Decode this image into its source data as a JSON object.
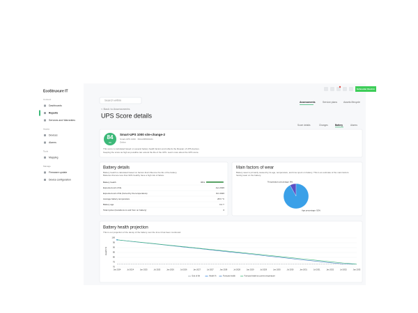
{
  "header": {
    "logo": "EcoStruxure IT",
    "search": "Search within",
    "brand": "Schneider Electric",
    "tabs": [
      "Assessments",
      "Service plans",
      "Assets lifecycle"
    ]
  },
  "sidebar": {
    "sections": [
      {
        "title": "Connect",
        "items": [
          "Dashboards",
          "Reports",
          "Services and Warranties"
        ]
      },
      {
        "title": "Assets",
        "items": [
          "Devices",
          "Alarms"
        ]
      },
      {
        "title": "Tools",
        "items": [
          "Mapping"
        ]
      },
      {
        "title": "Manage",
        "items": [
          "Firmware update",
          "Device configuration"
        ]
      }
    ]
  },
  "page": {
    "breadcrumb": "< Back to Assessments",
    "title": "UPS Score details",
    "tabs": [
      "Score details",
      "Changes",
      "Battery",
      "Alarms"
    ]
  },
  "score": {
    "value": "84",
    "status": "OK",
    "device": "Smart-UPS 1000 site-change-2",
    "meta": [
      "Smart-UPS 1000 · 3S1123BX00241",
      "Online"
    ],
    "description": [
      "This score is calculated based on several battery health factors and reflects the lifespan of UPS devices.",
      "Keeping the score as high as possible can extend the life of the UPS.  Learn more about the UPS score."
    ]
  },
  "battery": {
    "title": "Battery details",
    "description": [
      "Battery health is calculated based on factors that influence the life of the battery.",
      "Batteries that are less than 90% healthy have a high risk of failure."
    ],
    "health": {
      "label": "Battery health",
      "value": 95,
      "value_label": "95%"
    },
    "rows": [
      [
        "Expected end of life",
        "Jan 2026"
      ],
      [
        "Expected end of life (forced by the temperature)",
        "Oct 2026"
      ],
      [
        "Average battery temperature",
        "28.6 °C"
      ],
      [
        "Battery age",
        "0.2 Y"
      ],
      [
        "Total cycles (transitions to and from on battery)",
        "0"
      ]
    ]
  },
  "wear": {
    "title": "Main factors of wear",
    "description": [
      "Battery wear is primarily caused by its age, temperature, and time spent on battery. This is an estimate of the main factors",
      "having wear on the battery."
    ],
    "chart": {
      "type": "pie",
      "values": [
        8,
        92
      ],
      "value_labels": [
        "Temperature percentage: 8%",
        "Age percentage: 92%"
      ],
      "colors": [
        "#5b4fc4",
        "#3aa0e8"
      ]
    }
  },
  "projection": {
    "title": "Battery health projection",
    "description": "This is our projection of the decay of the battery over the time it has been monitored.",
    "chart": {
      "type": "line",
      "y_label": "Health %",
      "categories": [
        "Jan 2024",
        "Jul 2024",
        "Jan 2025",
        "Jul 2025",
        "Jan 2026",
        "Jul 2026",
        "Jan 2027",
        "Jul 2027",
        "Jan 2028",
        "Jul 2028",
        "Jan 2029",
        "Jul 2029",
        "Jan 2030",
        "Jul 2030",
        "Jan 2031",
        "Jul 2031",
        "Jan 2032",
        "Jul 2032",
        "Jan 2033"
      ],
      "ylim": [
        70,
        100
      ],
      "yticks": [
        70,
        75,
        80,
        85,
        90,
        95,
        100
      ],
      "series": [
        {
          "name": "End of life",
          "color": "#9aa0a6",
          "dash": true,
          "values": [
            73,
            73,
            73,
            73,
            73,
            73,
            73,
            73,
            73,
            73,
            73,
            73,
            73,
            73,
            73,
            73,
            73,
            73,
            73
          ]
        },
        {
          "name": "Health %",
          "color": "#2a7de1",
          "values": [
            98,
            null,
            null,
            null,
            null,
            null,
            null,
            null,
            null,
            null,
            null,
            null,
            null,
            null,
            null,
            null,
            null,
            null,
            null
          ]
        },
        {
          "name": "Forecast health",
          "color": "#3d7bbf",
          "values": [
            98,
            96.5,
            95,
            93.6,
            92.1,
            90.6,
            89.2,
            87.7,
            86.2,
            84.8,
            83.3,
            81.8,
            80.4,
            78.9,
            77.4,
            76,
            74.5,
            73.3,
            73
          ]
        },
        {
          "name": "Forecast health at current temperature",
          "color": "#3cb878",
          "values": [
            98,
            96.6,
            95.2,
            93.8,
            92.4,
            91,
            89.6,
            88.2,
            86.8,
            85.4,
            84,
            82.6,
            81.2,
            79.8,
            78.4,
            77,
            75.6,
            74.2,
            73
          ]
        }
      ]
    }
  }
}
